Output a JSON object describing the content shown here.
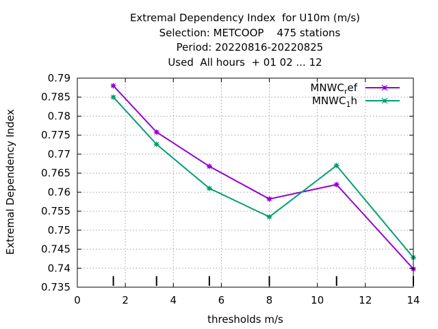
{
  "chart_data": {
    "type": "line",
    "title": [
      "Extremal Dependency Index  for U10m (m/s)",
      "Selection: METCOOP    475 stations",
      "Period: 20220816-20220825",
      "Used  All hours  + 01 02 ... 12"
    ],
    "xlabel": "thresholds m/s",
    "ylabel": "Extremal Dependency Index",
    "xlim": [
      0,
      14
    ],
    "ylim": [
      0.735,
      0.79
    ],
    "xticks": [
      "0",
      "2",
      "4",
      "6",
      "8",
      "10",
      "12",
      "14"
    ],
    "yticks": [
      "0.735",
      "0.74",
      "0.745",
      "0.75",
      "0.755",
      "0.76",
      "0.765",
      "0.77",
      "0.775",
      "0.78",
      "0.785",
      "0.79"
    ],
    "grid": true,
    "legend_position": "top-right",
    "x": [
      1.5,
      3.3,
      5.5,
      8.0,
      10.8,
      14.0
    ],
    "series": [
      {
        "name": "MNWC_ref",
        "legend_base": "MNWC",
        "legend_sub": "r",
        "legend_rest": "ef",
        "color": "#9400d3",
        "values": [
          0.788,
          0.7758,
          0.7668,
          0.7582,
          0.762,
          0.7398
        ]
      },
      {
        "name": "MNWC_1h",
        "legend_base": "MNWC",
        "legend_sub": "1",
        "legend_rest": "h",
        "color": "#009e73",
        "values": [
          0.785,
          0.7726,
          0.761,
          0.7535,
          0.767,
          0.7428
        ]
      }
    ]
  }
}
